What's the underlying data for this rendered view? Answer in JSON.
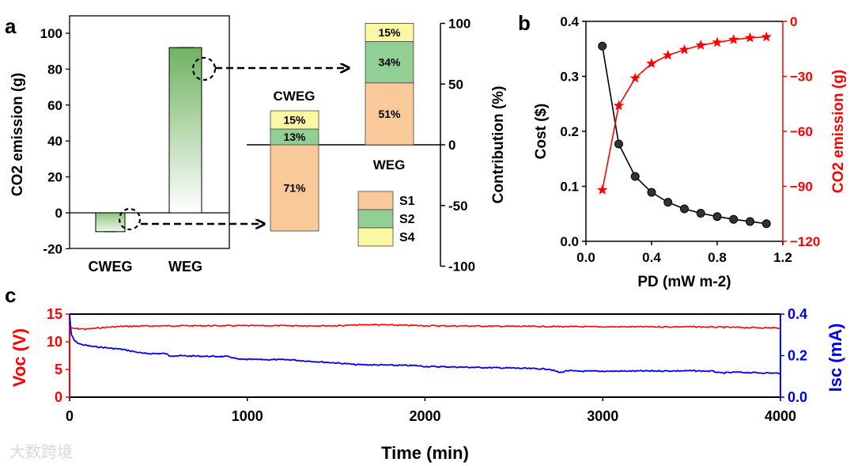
{
  "panel_labels": [
    "a",
    "b",
    "c"
  ],
  "watermark": "大数跨境",
  "colors": {
    "S1": "#f9c99a",
    "S2": "#92cf95",
    "S4": "#fbf7a3",
    "red": "#ff0000",
    "blue": "#0000ee",
    "green": "#6fb35f"
  },
  "chart_data": [
    {
      "id": "a-left",
      "type": "bar",
      "title": "",
      "ylabel": "CO2 emission (g)",
      "categories": [
        "CWEG",
        "WEG"
      ],
      "values": [
        -10.5,
        92
      ],
      "ylim": [
        -20,
        110
      ],
      "yticks": [
        -20,
        0,
        20,
        40,
        60,
        80,
        100
      ]
    },
    {
      "id": "a-right",
      "type": "bar",
      "stacked": true,
      "ylabel": "Contribution (%)",
      "ylim": [
        -100,
        100
      ],
      "yticks": [
        -100,
        -50,
        0,
        50,
        100
      ],
      "categories": [
        "CWEG",
        "WEG"
      ],
      "series": [
        {
          "name": "S1",
          "values": [
            -71,
            51
          ],
          "labels": [
            "71%",
            "51%"
          ]
        },
        {
          "name": "S2",
          "values": [
            13,
            34
          ],
          "labels": [
            "13%",
            "34%"
          ]
        },
        {
          "name": "S4",
          "values": [
            15,
            15
          ],
          "labels": [
            "15%",
            "15%"
          ]
        }
      ],
      "legend": [
        "S1",
        "S2",
        "S4"
      ],
      "legend_position": "bottom-right"
    },
    {
      "id": "b",
      "type": "line",
      "xlabel": "PD (mW m-2)",
      "xlabel_main": "PD (mW m",
      "xlabel_sup": "-2",
      "xlabel_end": ")",
      "ylabel": "Cost ($)",
      "y2label": "CO2 emission (g)",
      "xlim": [
        0,
        1.2
      ],
      "xticks": [
        "0.0",
        "0.4",
        "0.8",
        "1.2"
      ],
      "ylim": [
        0,
        0.4
      ],
      "yticks": [
        "0.0",
        "0.1",
        "0.2",
        "0.3",
        "0.4"
      ],
      "y2lim": [
        -120,
        0
      ],
      "y2ticks": [
        "0",
        "−30",
        "−60",
        "−90",
        "−120"
      ],
      "x": [
        0.1,
        0.2,
        0.3,
        0.4,
        0.5,
        0.6,
        0.7,
        0.8,
        0.9,
        1.0,
        1.1
      ],
      "series": [
        {
          "name": "Cost",
          "axis": "left",
          "values": [
            0.355,
            0.177,
            0.118,
            0.089,
            0.071,
            0.059,
            0.051,
            0.045,
            0.04,
            0.036,
            0.032
          ]
        },
        {
          "name": "CO2 emission",
          "axis": "right",
          "values": [
            -92,
            -46,
            -31,
            -23,
            -18.5,
            -15.5,
            -13,
            -11.5,
            -10,
            -9,
            -8.5
          ]
        }
      ]
    },
    {
      "id": "c",
      "type": "line",
      "xlabel": "Time (min)",
      "ylabel": "Voc (V)",
      "y2label": "Isc (mA)",
      "xlim": [
        0,
        4000
      ],
      "xticks": [
        "0",
        "1000",
        "2000",
        "3000",
        "4000"
      ],
      "ylim": [
        0,
        15
      ],
      "yticks": [
        "0",
        "5",
        "10",
        "15"
      ],
      "y2lim": [
        0,
        0.4
      ],
      "y2ticks": [
        "0.0",
        "0.2",
        "0.4"
      ],
      "series": [
        {
          "name": "Voc",
          "axis": "left",
          "x": [
            0,
            20,
            100,
            200,
            300,
            600,
            1000,
            1500,
            1700,
            2000,
            2500,
            3000,
            3500,
            4000
          ],
          "values": [
            12.5,
            12.4,
            12.3,
            12.6,
            12.8,
            12.9,
            12.9,
            12.9,
            13.1,
            12.9,
            12.8,
            12.7,
            12.7,
            12.5
          ]
        },
        {
          "name": "Isc",
          "axis": "right",
          "x": [
            0,
            10,
            30,
            60,
            120,
            300,
            420,
            540,
            560,
            900,
            950,
            1250,
            1300,
            1550,
            1600,
            1950,
            2000,
            2500,
            2700,
            2760,
            2800,
            2850,
            3000,
            3500,
            3620,
            3660,
            3750,
            4000
          ],
          "values": [
            0.4,
            0.3,
            0.27,
            0.255,
            0.245,
            0.23,
            0.21,
            0.21,
            0.2,
            0.195,
            0.182,
            0.18,
            0.176,
            0.162,
            0.157,
            0.152,
            0.148,
            0.14,
            0.135,
            0.118,
            0.128,
            0.125,
            0.125,
            0.127,
            0.125,
            0.116,
            0.12,
            0.115
          ]
        }
      ]
    }
  ]
}
